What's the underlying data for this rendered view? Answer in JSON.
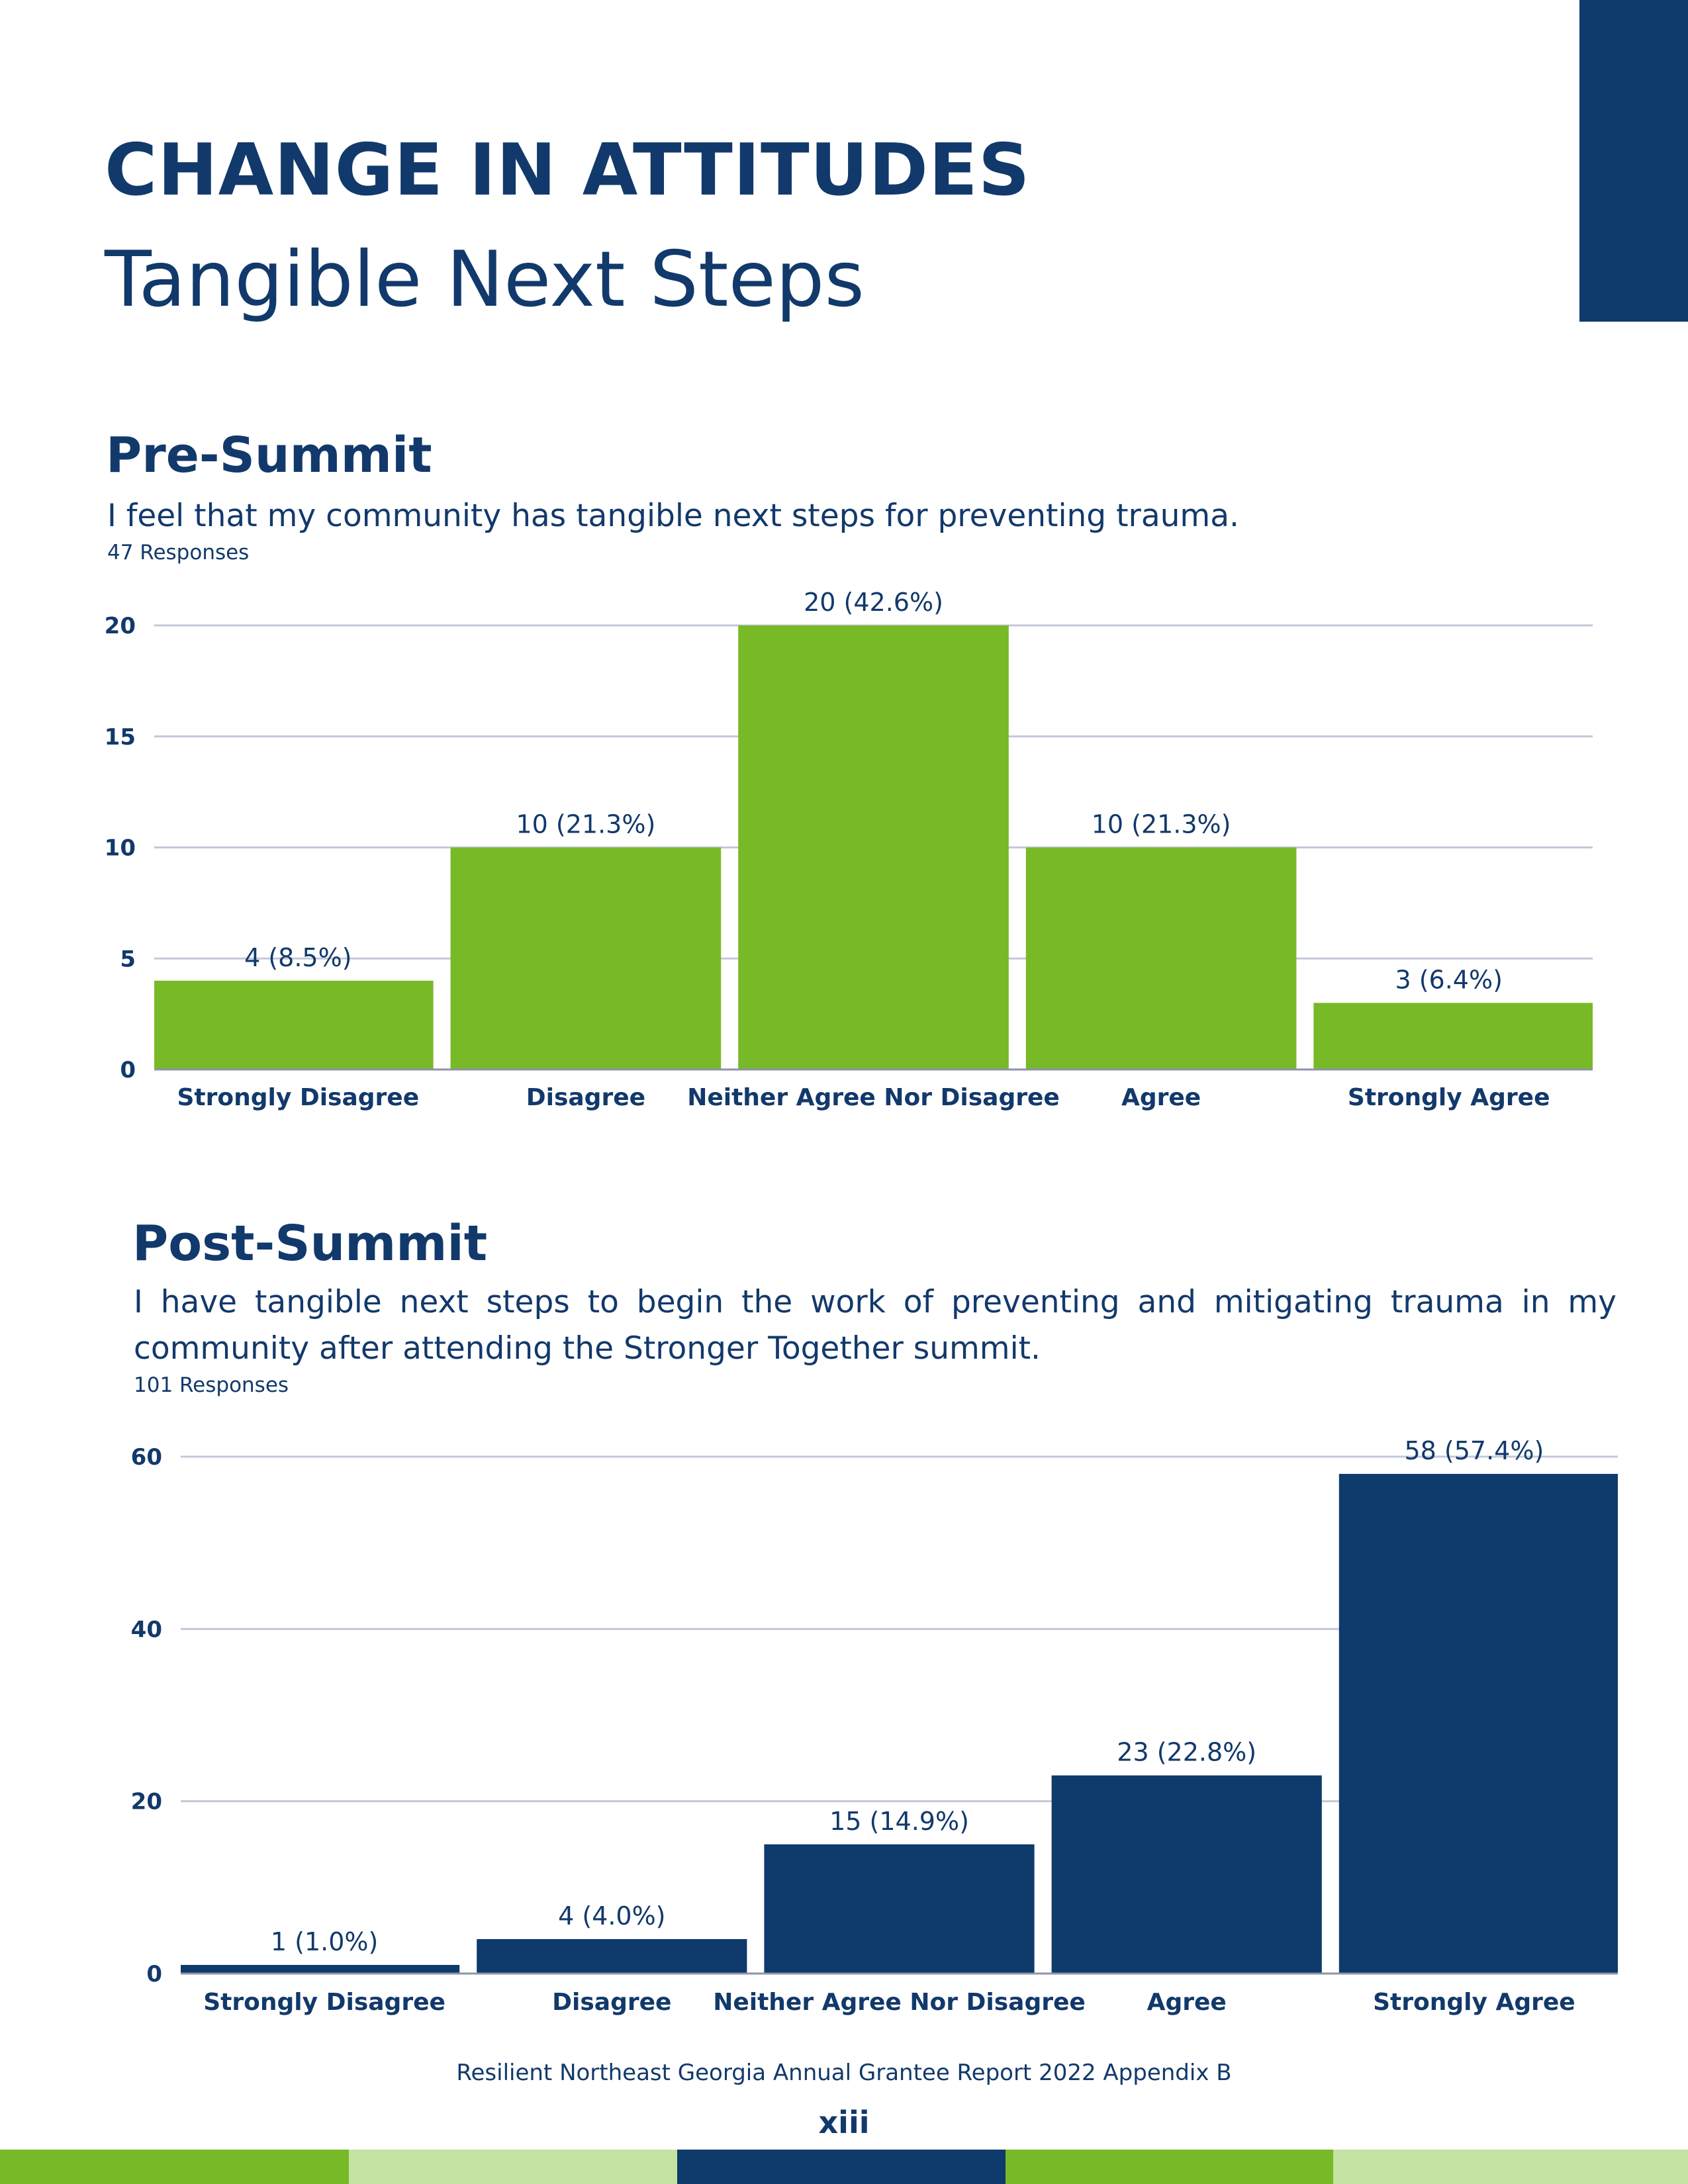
{
  "header": {
    "title": "CHANGE IN ATTITUDES",
    "subtitle": "Tangible Next Steps"
  },
  "pre": {
    "heading": "Pre-Summit",
    "question": "I feel that my community has tangible next steps for preventing trauma.",
    "responses": "47 Responses"
  },
  "post": {
    "heading": "Post-Summit",
    "question": "I have tangible next steps to begin the work of preventing and mitigating trauma in my community after attending the Stronger Together summit.",
    "responses": "101 Responses"
  },
  "footer": {
    "text": "Resilient Northeast Georgia Annual Grantee Report 2022 Appendix B",
    "page": "xiii"
  },
  "colors": {
    "navy": "#0f3a6c",
    "green": "#78b927",
    "light_green": "#c4e2a2",
    "grid": "#c3c9d9"
  },
  "chart_data": [
    {
      "type": "bar",
      "title": "Pre-Summit",
      "categories": [
        "Strongly Disagree",
        "Disagree",
        "Neither Agree Nor Disagree",
        "Agree",
        "Strongly Agree"
      ],
      "values": [
        4,
        10,
        20,
        10,
        3
      ],
      "data_labels": [
        "4 (8.5%)",
        "10 (21.3%)",
        "20 (42.6%)",
        "10 (21.3%)",
        "3 (6.4%)"
      ],
      "yticks": [
        0,
        5,
        10,
        15,
        20
      ],
      "ylim": [
        0,
        20
      ],
      "grid": true,
      "color": "#78b927"
    },
    {
      "type": "bar",
      "title": "Post-Summit",
      "categories": [
        "Strongly Disagree",
        "Disagree",
        "Neither Agree Nor Disagree",
        "Agree",
        "Strongly Agree"
      ],
      "values": [
        1,
        4,
        15,
        23,
        58
      ],
      "data_labels": [
        "1 (1.0%)",
        "4 (4.0%)",
        "15 (14.9%)",
        "23 (22.8%)",
        "58 (57.4%)"
      ],
      "yticks": [
        0,
        20,
        40,
        60
      ],
      "ylim": [
        0,
        60
      ],
      "grid": true,
      "color": "#0f3a6c"
    }
  ]
}
